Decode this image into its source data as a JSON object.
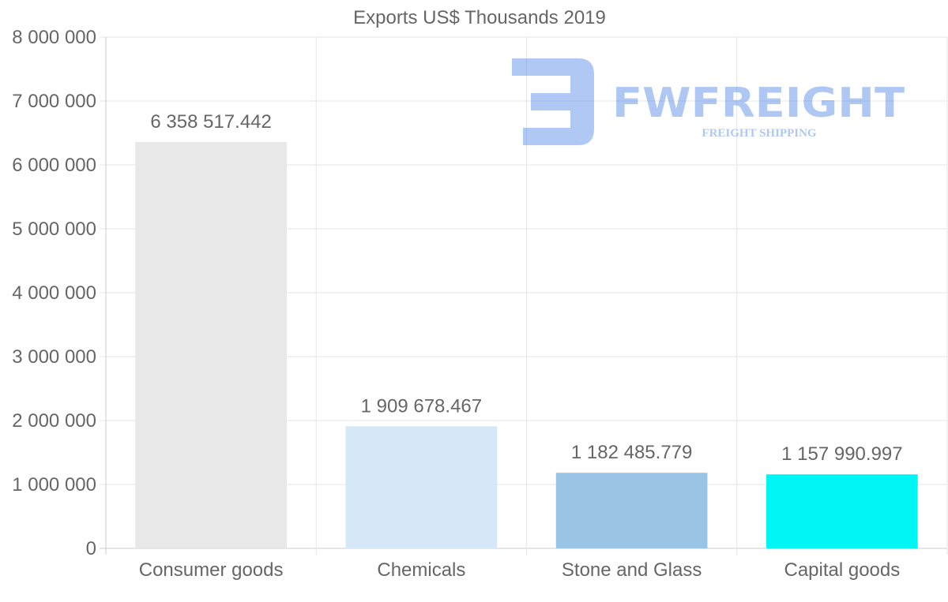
{
  "chart_data": {
    "type": "bar",
    "title": "Exports US$ Thousands 2019",
    "xlabel": "",
    "ylabel": "",
    "categories": [
      "Consumer goods",
      "Chemicals",
      "Stone and Glass",
      "Capital goods"
    ],
    "values": [
      6358517.442,
      1909678.467,
      1182485.779,
      1157990.997
    ],
    "data_labels": [
      "6 358 517.442",
      "1 909 678.467",
      "1 182 485.779",
      "1 157 990.997"
    ],
    "colors": [
      "#e8e8e8",
      "#d6e7f8",
      "#9ac4e6",
      "#00f5f5"
    ],
    "ylim": [
      0,
      8000000
    ],
    "yticks": [
      0,
      1000000,
      2000000,
      3000000,
      4000000,
      5000000,
      6000000,
      7000000,
      8000000
    ],
    "ytick_labels": [
      "0",
      "1 000 000",
      "2 000 000",
      "3 000 000",
      "4 000 000",
      "5 000 000",
      "6 000 000",
      "7 000 000",
      "8 000 000"
    ],
    "grid": true,
    "legend": "none"
  },
  "watermark": {
    "brand": "FWFREIGHT",
    "tagline": "FREIGHT SHIPPING",
    "color": "#4f86e6"
  }
}
